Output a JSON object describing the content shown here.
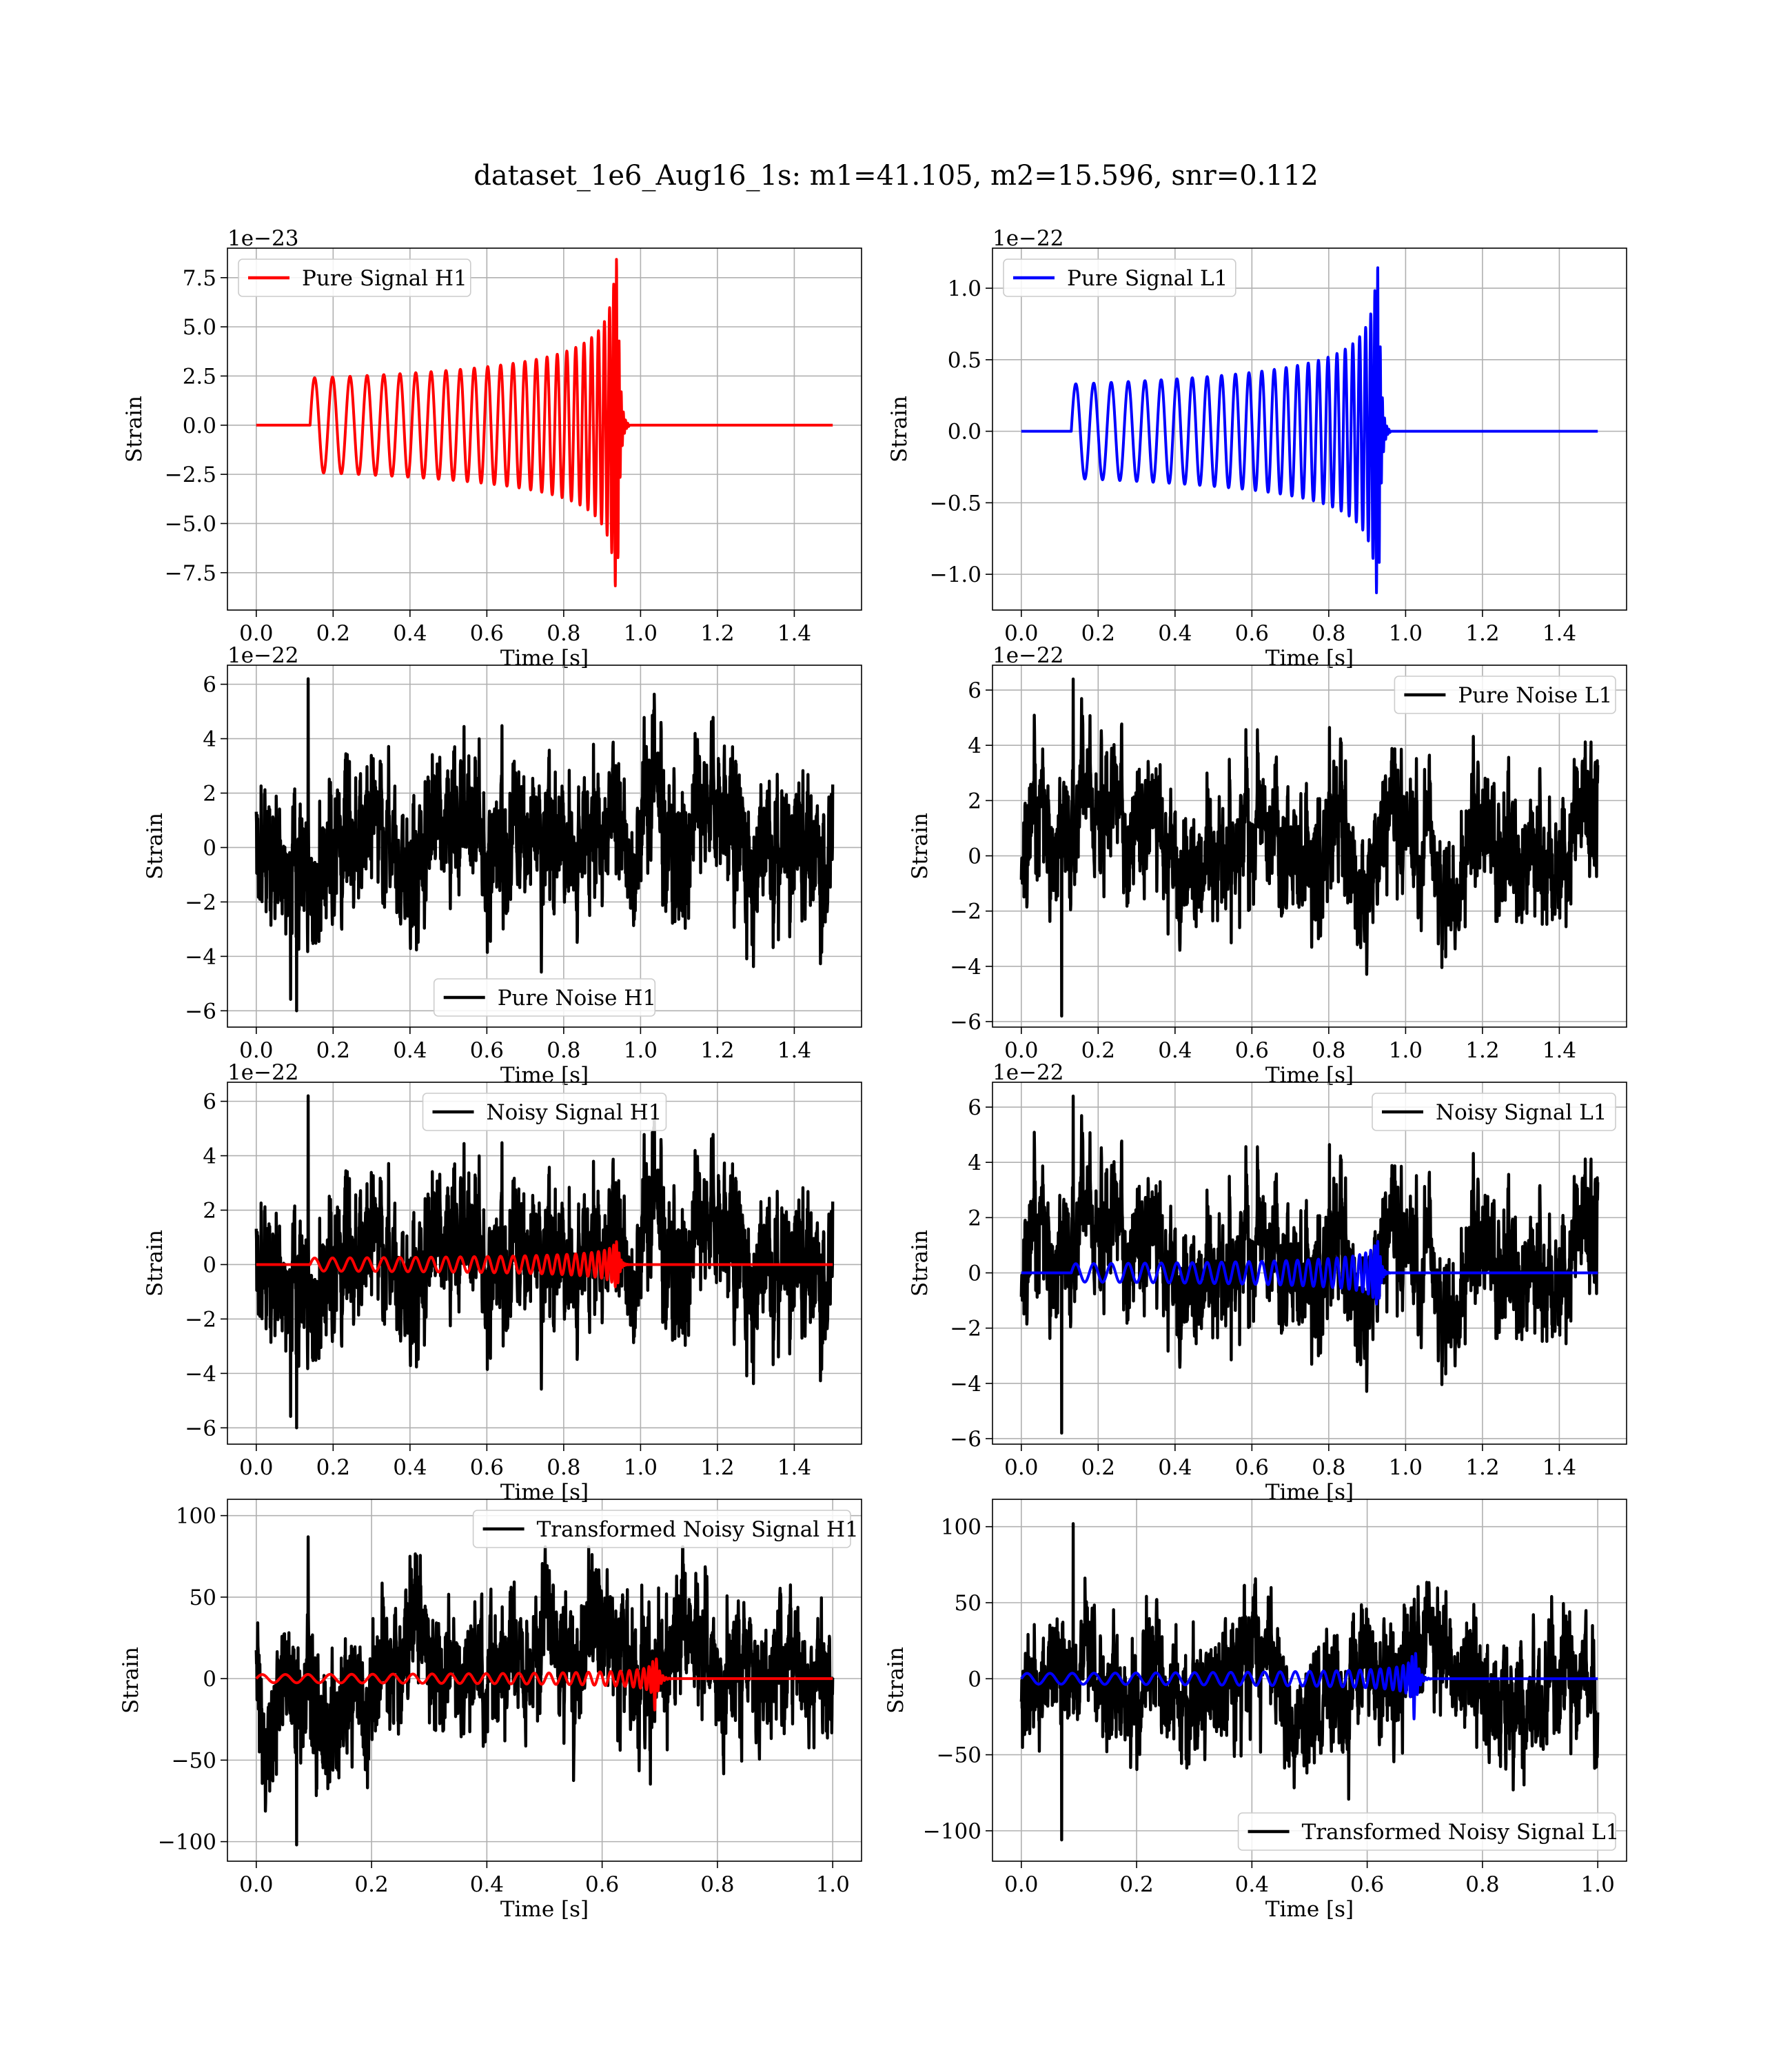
{
  "figure": {
    "suptitle": "dataset_1e6_Aug16_1s: m1=41.105, m2=15.596, snr=0.112"
  },
  "chart_data": [
    {
      "id": "pure-signal-h1",
      "type": "line",
      "xlabel": "Time [s]",
      "ylabel": "Strain",
      "offset_text": "1e−23",
      "xlim": [
        -0.075,
        1.575
      ],
      "ylim": [
        -9.4,
        9.0
      ],
      "xticks": [
        0.0,
        0.2,
        0.4,
        0.6,
        0.8,
        1.0,
        1.2,
        1.4
      ],
      "xtick_labels": [
        "0.0",
        "0.2",
        "0.4",
        "0.6",
        "0.8",
        "1.0",
        "1.2",
        "1.4"
      ],
      "yticks": [
        -7.5,
        -5.0,
        -2.5,
        0.0,
        2.5,
        5.0,
        7.5
      ],
      "ytick_labels": [
        "−7.5",
        "−5.0",
        "−2.5",
        "0.0",
        "2.5",
        "5.0",
        "7.5"
      ],
      "grid": true,
      "legend_loc": "upper-left",
      "series": [
        {
          "name": "Pure Signal H1",
          "kind": "chirp",
          "color": "#ff0000",
          "t_start": 0.14,
          "t_merge": 0.94,
          "t_end": 1.5,
          "amp0": 2.4,
          "amp_peak": 8.5,
          "f0": 19,
          "cycles": 27
        }
      ]
    },
    {
      "id": "pure-signal-l1",
      "type": "line",
      "xlabel": "Time [s]",
      "ylabel": "Strain",
      "offset_text": "1e−22",
      "xlim": [
        -0.075,
        1.575
      ],
      "ylim": [
        -1.25,
        1.28
      ],
      "xticks": [
        0.0,
        0.2,
        0.4,
        0.6,
        0.8,
        1.0,
        1.2,
        1.4
      ],
      "xtick_labels": [
        "0.0",
        "0.2",
        "0.4",
        "0.6",
        "0.8",
        "1.0",
        "1.2",
        "1.4"
      ],
      "yticks": [
        -1.0,
        -0.5,
        0.0,
        0.5,
        1.0
      ],
      "ytick_labels": [
        "−1.0",
        "−0.5",
        "0.0",
        "0.5",
        "1.0"
      ],
      "grid": true,
      "legend_loc": "upper-left",
      "series": [
        {
          "name": "Pure Signal L1",
          "kind": "chirp",
          "color": "#0000ff",
          "t_start": 0.13,
          "t_merge": 0.93,
          "t_end": 1.5,
          "amp0": 0.33,
          "amp_peak": 1.17,
          "f0": 19,
          "cycles": 27
        }
      ]
    },
    {
      "id": "pure-noise-h1",
      "type": "line",
      "xlabel": "Time [s]",
      "ylabel": "Strain",
      "offset_text": "1e−22",
      "xlim": [
        -0.075,
        1.575
      ],
      "ylim": [
        -6.6,
        6.7
      ],
      "xticks": [
        0.0,
        0.2,
        0.4,
        0.6,
        0.8,
        1.0,
        1.2,
        1.4
      ],
      "xtick_labels": [
        "0.0",
        "0.2",
        "0.4",
        "0.6",
        "0.8",
        "1.0",
        "1.2",
        "1.4"
      ],
      "yticks": [
        -6,
        -4,
        -2,
        0,
        2,
        4,
        6
      ],
      "ytick_labels": [
        "−6",
        "−4",
        "−2",
        "0",
        "2",
        "4",
        "6"
      ],
      "grid": true,
      "legend_loc": "lower-center",
      "series": [
        {
          "name": "Pure Noise H1",
          "kind": "noise",
          "color": "#000000",
          "t_start": 0.0,
          "t_end": 1.5,
          "amp": 2.0,
          "max": 6.2,
          "min": -6.0,
          "seed": 11
        }
      ]
    },
    {
      "id": "pure-noise-l1",
      "type": "line",
      "xlabel": "Time [s]",
      "ylabel": "Strain",
      "offset_text": "1e−22",
      "xlim": [
        -0.075,
        1.575
      ],
      "ylim": [
        -6.2,
        6.9
      ],
      "xticks": [
        0.0,
        0.2,
        0.4,
        0.6,
        0.8,
        1.0,
        1.2,
        1.4
      ],
      "xtick_labels": [
        "0.0",
        "0.2",
        "0.4",
        "0.6",
        "0.8",
        "1.0",
        "1.2",
        "1.4"
      ],
      "yticks": [
        -6,
        -4,
        -2,
        0,
        2,
        4,
        6
      ],
      "ytick_labels": [
        "−6",
        "−4",
        "−2",
        "0",
        "2",
        "4",
        "6"
      ],
      "grid": true,
      "legend_loc": "upper-right",
      "series": [
        {
          "name": "Pure Noise L1",
          "kind": "noise",
          "color": "#000000",
          "t_start": 0.0,
          "t_end": 1.5,
          "amp": 1.8,
          "max": 6.4,
          "min": -5.8,
          "seed": 23
        }
      ]
    },
    {
      "id": "noisy-signal-h1",
      "type": "line",
      "xlabel": "Time [s]",
      "ylabel": "Strain",
      "offset_text": "1e−22",
      "xlim": [
        -0.075,
        1.575
      ],
      "ylim": [
        -6.6,
        6.7
      ],
      "xticks": [
        0.0,
        0.2,
        0.4,
        0.6,
        0.8,
        1.0,
        1.2,
        1.4
      ],
      "xtick_labels": [
        "0.0",
        "0.2",
        "0.4",
        "0.6",
        "0.8",
        "1.0",
        "1.2",
        "1.4"
      ],
      "yticks": [
        -6,
        -4,
        -2,
        0,
        2,
        4,
        6
      ],
      "ytick_labels": [
        "−6",
        "−4",
        "−2",
        "0",
        "2",
        "4",
        "6"
      ],
      "grid": true,
      "legend_loc": "upper-center",
      "series": [
        {
          "name": "Noisy Signal H1",
          "kind": "noise",
          "color": "#000000",
          "t_start": 0.0,
          "t_end": 1.5,
          "amp": 2.0,
          "max": 6.2,
          "min": -6.0,
          "seed": 11
        },
        {
          "name": "",
          "kind": "chirp",
          "color": "#ff0000",
          "t_start": 0.14,
          "t_merge": 0.94,
          "t_end": 1.5,
          "amp0": 0.24,
          "amp_peak": 0.85,
          "f0": 19,
          "cycles": 27
        }
      ]
    },
    {
      "id": "noisy-signal-l1",
      "type": "line",
      "xlabel": "Time [s]",
      "ylabel": "Strain",
      "offset_text": "1e−22",
      "xlim": [
        -0.075,
        1.575
      ],
      "ylim": [
        -6.2,
        6.9
      ],
      "xticks": [
        0.0,
        0.2,
        0.4,
        0.6,
        0.8,
        1.0,
        1.2,
        1.4
      ],
      "xtick_labels": [
        "0.0",
        "0.2",
        "0.4",
        "0.6",
        "0.8",
        "1.0",
        "1.2",
        "1.4"
      ],
      "yticks": [
        -6,
        -4,
        -2,
        0,
        2,
        4,
        6
      ],
      "ytick_labels": [
        "−6",
        "−4",
        "−2",
        "0",
        "2",
        "4",
        "6"
      ],
      "grid": true,
      "legend_loc": "upper-right",
      "series": [
        {
          "name": "Noisy Signal L1",
          "kind": "noise",
          "color": "#000000",
          "t_start": 0.0,
          "t_end": 1.5,
          "amp": 1.8,
          "max": 6.4,
          "min": -5.8,
          "seed": 23
        },
        {
          "name": "",
          "kind": "chirp",
          "color": "#0000ff",
          "t_start": 0.13,
          "t_merge": 0.93,
          "t_end": 1.5,
          "amp0": 0.33,
          "amp_peak": 1.17,
          "f0": 19,
          "cycles": 27
        }
      ]
    },
    {
      "id": "transformed-noisy-signal-h1",
      "type": "line",
      "xlabel": "Time [s]",
      "ylabel": "Strain",
      "offset_text": "",
      "xlim": [
        -0.05,
        1.05
      ],
      "ylim": [
        -112,
        110
      ],
      "xticks": [
        0.0,
        0.2,
        0.4,
        0.6,
        0.8,
        1.0
      ],
      "xtick_labels": [
        "0.0",
        "0.2",
        "0.4",
        "0.6",
        "0.8",
        "1.0"
      ],
      "yticks": [
        -100,
        -50,
        0,
        50,
        100
      ],
      "ytick_labels": [
        "−100",
        "−50",
        "0",
        "50",
        "100"
      ],
      "grid": true,
      "legend_loc": "upper-right",
      "series": [
        {
          "name": "Transformed Noisy Signal H1",
          "kind": "noise",
          "color": "#000000",
          "t_start": 0.0,
          "t_end": 1.0,
          "amp": 30,
          "max": 87,
          "min": -102,
          "seed": 37
        },
        {
          "name": "",
          "kind": "chirp",
          "color": "#ff0000",
          "t_start": 0.0,
          "t_merge": 0.69,
          "t_end": 1.0,
          "amp0": 2.5,
          "amp_peak": 24,
          "f0": 28,
          "cycles": 27
        }
      ]
    },
    {
      "id": "transformed-noisy-signal-l1",
      "type": "line",
      "xlabel": "Time [s]",
      "ylabel": "Strain",
      "offset_text": "",
      "xlim": [
        -0.05,
        1.05
      ],
      "ylim": [
        -120,
        118
      ],
      "xticks": [
        0.0,
        0.2,
        0.4,
        0.6,
        0.8,
        1.0
      ],
      "xtick_labels": [
        "0.0",
        "0.2",
        "0.4",
        "0.6",
        "0.8",
        "1.0"
      ],
      "yticks": [
        -100,
        -50,
        0,
        50,
        100
      ],
      "ytick_labels": [
        "−100",
        "−50",
        "0",
        "50",
        "100"
      ],
      "grid": true,
      "legend_loc": "lower-right",
      "series": [
        {
          "name": "Transformed Noisy Signal L1",
          "kind": "noise",
          "color": "#000000",
          "t_start": 0.0,
          "t_end": 1.0,
          "amp": 30,
          "max": 102,
          "min": -106,
          "seed": 53
        },
        {
          "name": "",
          "kind": "chirp",
          "color": "#0000ff",
          "t_start": 0.0,
          "t_merge": 0.68,
          "t_end": 1.0,
          "amp0": 3.5,
          "amp_peak": 33,
          "f0": 28,
          "cycles": 27
        }
      ]
    }
  ]
}
